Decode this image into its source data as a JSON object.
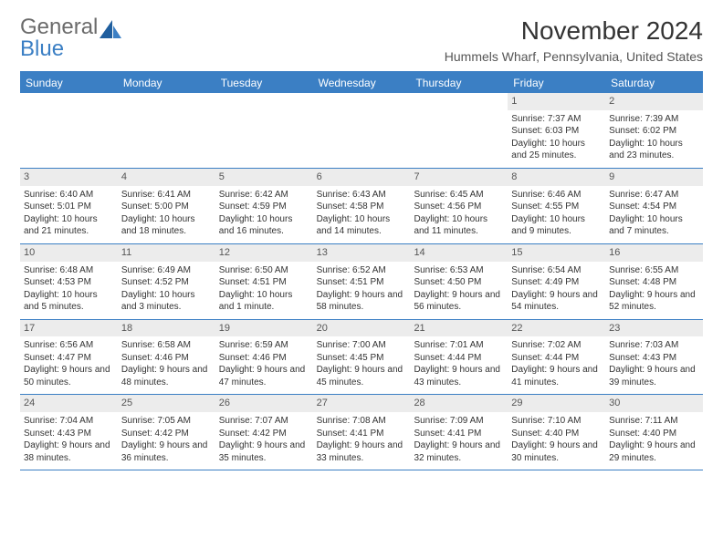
{
  "logo": {
    "word1": "General",
    "word2": "Blue",
    "color_gray": "#6b6b6b",
    "color_blue": "#3b7fc4"
  },
  "title": "November 2024",
  "subtitle": "Hummels Wharf, Pennsylvania, United States",
  "colors": {
    "header_bar": "#3b7fc4",
    "daynum_bg": "#ececec",
    "text": "#333333",
    "rule": "#3b7fc4"
  },
  "weekdays": [
    "Sunday",
    "Monday",
    "Tuesday",
    "Wednesday",
    "Thursday",
    "Friday",
    "Saturday"
  ],
  "weeks": [
    [
      {
        "n": "",
        "sr": "",
        "ss": "",
        "dl": ""
      },
      {
        "n": "",
        "sr": "",
        "ss": "",
        "dl": ""
      },
      {
        "n": "",
        "sr": "",
        "ss": "",
        "dl": ""
      },
      {
        "n": "",
        "sr": "",
        "ss": "",
        "dl": ""
      },
      {
        "n": "",
        "sr": "",
        "ss": "",
        "dl": ""
      },
      {
        "n": "1",
        "sr": "Sunrise: 7:37 AM",
        "ss": "Sunset: 6:03 PM",
        "dl": "Daylight: 10 hours and 25 minutes."
      },
      {
        "n": "2",
        "sr": "Sunrise: 7:39 AM",
        "ss": "Sunset: 6:02 PM",
        "dl": "Daylight: 10 hours and 23 minutes."
      }
    ],
    [
      {
        "n": "3",
        "sr": "Sunrise: 6:40 AM",
        "ss": "Sunset: 5:01 PM",
        "dl": "Daylight: 10 hours and 21 minutes."
      },
      {
        "n": "4",
        "sr": "Sunrise: 6:41 AM",
        "ss": "Sunset: 5:00 PM",
        "dl": "Daylight: 10 hours and 18 minutes."
      },
      {
        "n": "5",
        "sr": "Sunrise: 6:42 AM",
        "ss": "Sunset: 4:59 PM",
        "dl": "Daylight: 10 hours and 16 minutes."
      },
      {
        "n": "6",
        "sr": "Sunrise: 6:43 AM",
        "ss": "Sunset: 4:58 PM",
        "dl": "Daylight: 10 hours and 14 minutes."
      },
      {
        "n": "7",
        "sr": "Sunrise: 6:45 AM",
        "ss": "Sunset: 4:56 PM",
        "dl": "Daylight: 10 hours and 11 minutes."
      },
      {
        "n": "8",
        "sr": "Sunrise: 6:46 AM",
        "ss": "Sunset: 4:55 PM",
        "dl": "Daylight: 10 hours and 9 minutes."
      },
      {
        "n": "9",
        "sr": "Sunrise: 6:47 AM",
        "ss": "Sunset: 4:54 PM",
        "dl": "Daylight: 10 hours and 7 minutes."
      }
    ],
    [
      {
        "n": "10",
        "sr": "Sunrise: 6:48 AM",
        "ss": "Sunset: 4:53 PM",
        "dl": "Daylight: 10 hours and 5 minutes."
      },
      {
        "n": "11",
        "sr": "Sunrise: 6:49 AM",
        "ss": "Sunset: 4:52 PM",
        "dl": "Daylight: 10 hours and 3 minutes."
      },
      {
        "n": "12",
        "sr": "Sunrise: 6:50 AM",
        "ss": "Sunset: 4:51 PM",
        "dl": "Daylight: 10 hours and 1 minute."
      },
      {
        "n": "13",
        "sr": "Sunrise: 6:52 AM",
        "ss": "Sunset: 4:51 PM",
        "dl": "Daylight: 9 hours and 58 minutes."
      },
      {
        "n": "14",
        "sr": "Sunrise: 6:53 AM",
        "ss": "Sunset: 4:50 PM",
        "dl": "Daylight: 9 hours and 56 minutes."
      },
      {
        "n": "15",
        "sr": "Sunrise: 6:54 AM",
        "ss": "Sunset: 4:49 PM",
        "dl": "Daylight: 9 hours and 54 minutes."
      },
      {
        "n": "16",
        "sr": "Sunrise: 6:55 AM",
        "ss": "Sunset: 4:48 PM",
        "dl": "Daylight: 9 hours and 52 minutes."
      }
    ],
    [
      {
        "n": "17",
        "sr": "Sunrise: 6:56 AM",
        "ss": "Sunset: 4:47 PM",
        "dl": "Daylight: 9 hours and 50 minutes."
      },
      {
        "n": "18",
        "sr": "Sunrise: 6:58 AM",
        "ss": "Sunset: 4:46 PM",
        "dl": "Daylight: 9 hours and 48 minutes."
      },
      {
        "n": "19",
        "sr": "Sunrise: 6:59 AM",
        "ss": "Sunset: 4:46 PM",
        "dl": "Daylight: 9 hours and 47 minutes."
      },
      {
        "n": "20",
        "sr": "Sunrise: 7:00 AM",
        "ss": "Sunset: 4:45 PM",
        "dl": "Daylight: 9 hours and 45 minutes."
      },
      {
        "n": "21",
        "sr": "Sunrise: 7:01 AM",
        "ss": "Sunset: 4:44 PM",
        "dl": "Daylight: 9 hours and 43 minutes."
      },
      {
        "n": "22",
        "sr": "Sunrise: 7:02 AM",
        "ss": "Sunset: 4:44 PM",
        "dl": "Daylight: 9 hours and 41 minutes."
      },
      {
        "n": "23",
        "sr": "Sunrise: 7:03 AM",
        "ss": "Sunset: 4:43 PM",
        "dl": "Daylight: 9 hours and 39 minutes."
      }
    ],
    [
      {
        "n": "24",
        "sr": "Sunrise: 7:04 AM",
        "ss": "Sunset: 4:43 PM",
        "dl": "Daylight: 9 hours and 38 minutes."
      },
      {
        "n": "25",
        "sr": "Sunrise: 7:05 AM",
        "ss": "Sunset: 4:42 PM",
        "dl": "Daylight: 9 hours and 36 minutes."
      },
      {
        "n": "26",
        "sr": "Sunrise: 7:07 AM",
        "ss": "Sunset: 4:42 PM",
        "dl": "Daylight: 9 hours and 35 minutes."
      },
      {
        "n": "27",
        "sr": "Sunrise: 7:08 AM",
        "ss": "Sunset: 4:41 PM",
        "dl": "Daylight: 9 hours and 33 minutes."
      },
      {
        "n": "28",
        "sr": "Sunrise: 7:09 AM",
        "ss": "Sunset: 4:41 PM",
        "dl": "Daylight: 9 hours and 32 minutes."
      },
      {
        "n": "29",
        "sr": "Sunrise: 7:10 AM",
        "ss": "Sunset: 4:40 PM",
        "dl": "Daylight: 9 hours and 30 minutes."
      },
      {
        "n": "30",
        "sr": "Sunrise: 7:11 AM",
        "ss": "Sunset: 4:40 PM",
        "dl": "Daylight: 9 hours and 29 minutes."
      }
    ]
  ]
}
